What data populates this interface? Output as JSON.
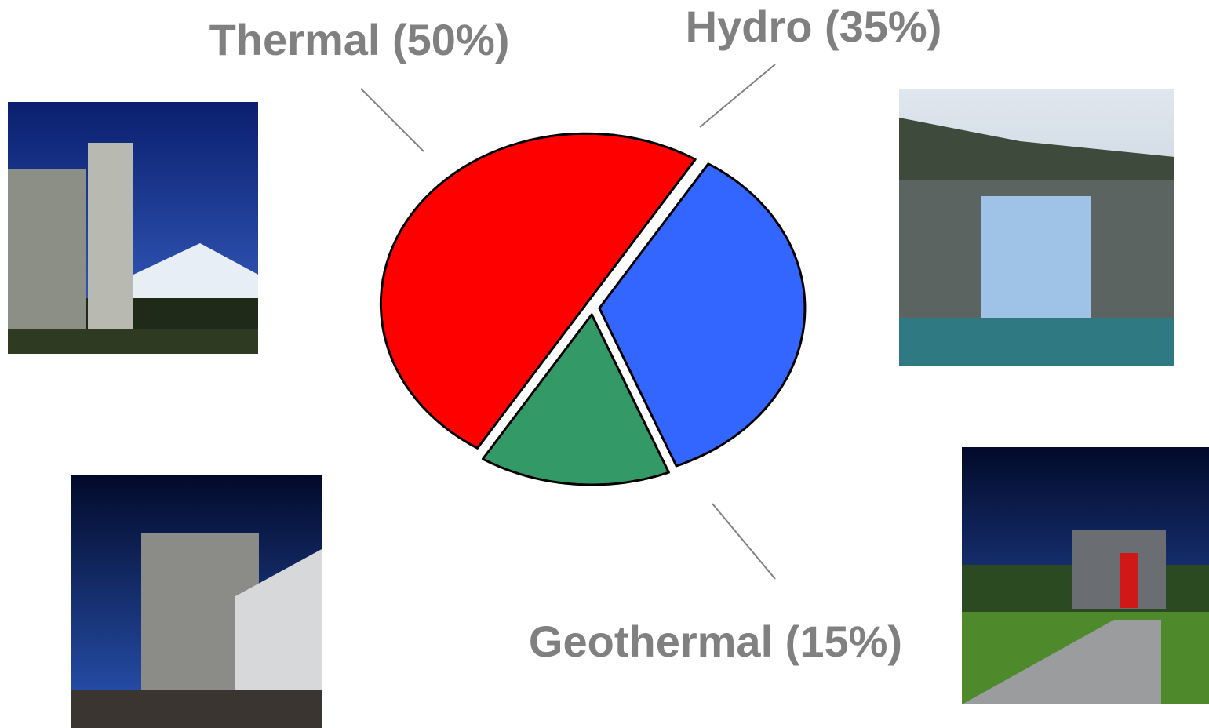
{
  "chart_data": {
    "type": "pie",
    "values": [
      50,
      35,
      15
    ],
    "value_labels": [
      "Thermal (50%)",
      "Hydro (35%)",
      "Geothermal (15%)"
    ],
    "colors": [
      "#ff0000",
      "#3366ff",
      "#339966"
    ]
  }
}
